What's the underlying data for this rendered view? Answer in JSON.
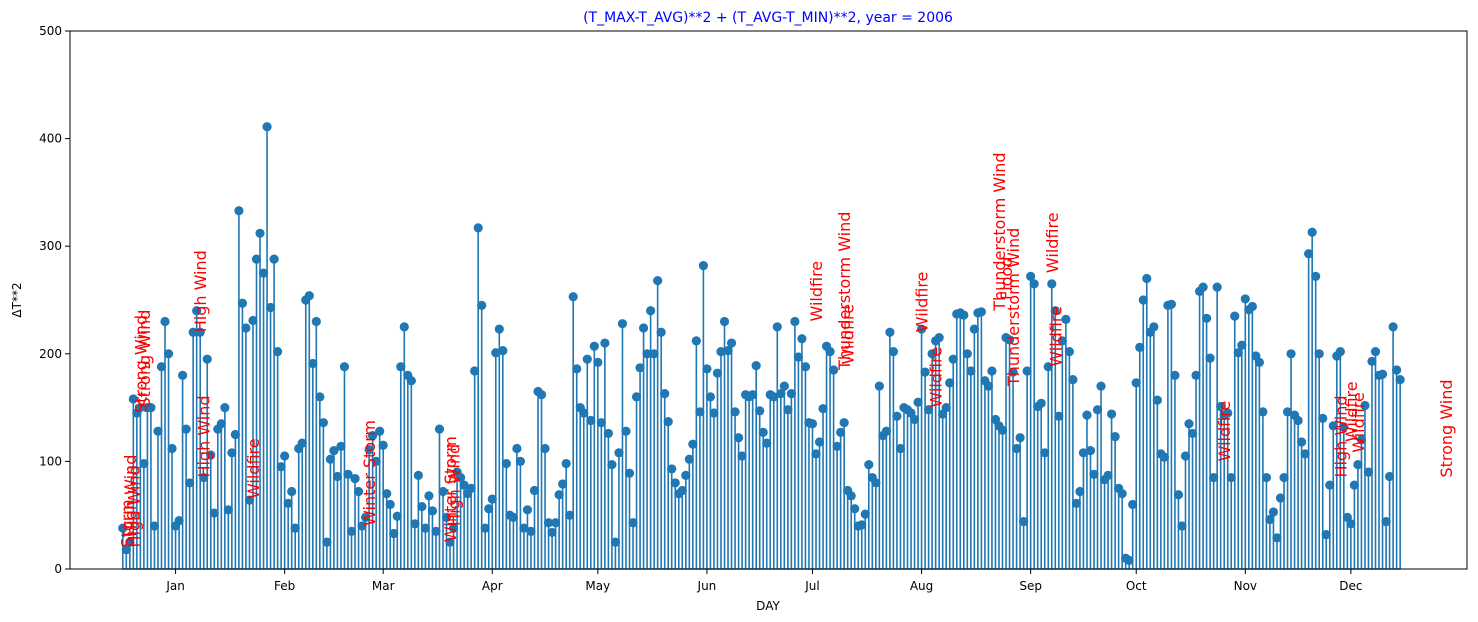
{
  "chart_data": {
    "type": "stem",
    "title": "(T_MAX-T_AVG)**2 + (T_AVG-T_MIN)**2, year = 2006",
    "xlabel": "DAY",
    "ylabel": "ΔT**2",
    "ylim": [
      0,
      500
    ],
    "yticks": [
      0,
      100,
      200,
      300,
      400,
      500
    ],
    "xticks": [
      {
        "label": "Jan",
        "day": 15
      },
      {
        "label": "Feb",
        "day": 46
      },
      {
        "label": "Mar",
        "day": 74
      },
      {
        "label": "Apr",
        "day": 105
      },
      {
        "label": "May",
        "day": 135
      },
      {
        "label": "Jun",
        "day": 166
      },
      {
        "label": "Jul",
        "day": 196
      },
      {
        "label": "Aug",
        "day": 227
      },
      {
        "label": "Sep",
        "day": 258
      },
      {
        "label": "Oct",
        "day": 288
      },
      {
        "label": "Nov",
        "day": 319
      },
      {
        "label": "Dec",
        "day": 349
      }
    ],
    "xlim": [
      -15,
      382
    ],
    "series": [
      {
        "values": [
          38,
          18,
          25,
          158,
          145,
          150,
          98,
          150,
          150,
          40,
          128,
          188,
          230,
          200,
          112,
          40,
          45,
          180,
          130,
          80,
          220,
          240,
          220,
          85,
          195,
          106,
          52,
          130,
          135,
          150,
          55,
          108,
          125,
          333,
          247,
          224,
          64,
          231,
          288,
          312,
          275,
          411,
          243,
          288,
          202,
          95,
          105,
          61,
          72,
          38,
          112,
          117,
          250,
          254,
          191,
          230,
          160,
          136,
          25,
          102,
          110,
          86,
          114,
          188,
          88,
          35,
          84,
          72,
          40,
          48,
          111,
          124,
          100,
          128,
          115,
          70,
          60,
          33,
          49,
          188,
          225,
          180,
          175,
          42,
          87,
          58,
          38,
          68,
          54,
          35,
          130,
          72,
          48,
          25,
          38,
          90,
          85,
          78,
          70,
          75,
          184,
          317,
          245,
          38,
          56,
          65,
          201,
          223,
          203,
          98,
          50,
          48,
          112,
          100,
          38,
          55,
          35,
          73,
          165,
          162,
          112,
          43,
          34,
          43,
          69,
          79,
          98,
          50,
          253,
          186,
          150,
          145,
          195,
          138,
          207,
          192,
          136,
          210,
          126,
          97,
          25,
          108,
          228,
          128,
          89,
          43,
          160,
          187,
          224,
          200,
          240,
          200,
          268,
          220,
          163,
          137,
          93,
          80,
          70,
          73,
          87,
          102,
          116,
          212,
          146,
          282,
          186,
          160,
          145,
          182,
          202,
          230,
          203,
          210,
          146,
          122,
          105,
          162,
          160,
          162,
          189,
          147,
          127,
          117,
          162,
          160,
          225,
          163,
          170,
          148,
          163,
          230,
          197,
          214,
          188,
          136,
          135,
          107,
          118,
          149,
          207,
          202,
          185,
          114,
          127,
          136,
          73,
          68,
          56,
          40,
          41,
          51,
          97,
          85,
          80,
          170,
          124,
          128,
          220,
          202,
          142,
          112,
          150,
          148,
          145,
          139,
          155,
          223,
          183,
          148,
          200,
          212,
          215,
          144,
          150,
          173,
          195,
          237,
          238,
          236,
          200,
          184,
          223,
          238,
          239,
          175,
          170,
          184,
          139,
          133,
          129,
          215,
          213,
          183,
          112,
          122,
          44,
          184,
          272,
          265,
          151,
          154,
          108,
          188,
          265,
          240,
          142,
          212,
          232,
          202,
          176,
          61,
          72,
          108,
          143,
          110,
          88,
          148,
          170,
          83,
          87,
          144,
          123,
          75,
          70,
          10,
          8,
          60,
          173,
          206,
          250,
          270,
          220,
          225,
          157,
          107,
          104,
          245,
          246,
          180,
          69,
          40,
          105,
          135,
          126,
          180,
          258,
          262,
          233,
          196,
          85,
          262,
          151,
          143,
          145,
          85,
          235,
          201,
          208,
          251,
          241,
          244,
          198,
          192,
          146,
          85,
          46,
          53,
          29,
          66,
          85,
          146,
          200,
          143,
          138,
          118,
          107,
          293,
          313,
          272,
          200,
          140,
          32,
          78,
          133,
          198,
          202,
          132,
          48,
          42,
          78,
          97,
          120,
          152,
          90,
          193,
          202,
          180,
          181,
          44,
          86,
          225,
          185,
          176
        ]
      }
    ],
    "annotations": [
      {
        "text": "Storm",
        "day": 1,
        "y": 20
      },
      {
        "text": "High Wind",
        "day": 2,
        "y": 30
      },
      {
        "text": "High Wind",
        "day": 3,
        "y": 20
      },
      {
        "text": "Strong Wind",
        "day": 5,
        "y": 145
      },
      {
        "text": "Strong Wind",
        "day": 6,
        "y": 150
      },
      {
        "text": "High Wind",
        "day": 22,
        "y": 220
      },
      {
        "text": "High Wind",
        "day": 23,
        "y": 85
      },
      {
        "text": "Wildfire",
        "day": 37,
        "y": 65
      },
      {
        "text": "Winter Storm",
        "day": 70,
        "y": 40
      },
      {
        "text": "Winter Storm",
        "day": 93,
        "y": 25
      },
      {
        "text": "High Wind",
        "day": 94,
        "y": 40
      },
      {
        "text": "Wildfire",
        "day": 197,
        "y": 230
      },
      {
        "text": "Thunderstorm Wind",
        "day": 205,
        "y": 185
      },
      {
        "text": "Wildfire",
        "day": 206,
        "y": 190
      },
      {
        "text": "Wildfire",
        "day": 227,
        "y": 220
      },
      {
        "text": "Wildfire",
        "day": 231,
        "y": 150
      },
      {
        "text": "Thunderstorm Wind",
        "day": 249,
        "y": 240
      },
      {
        "text": "Flood",
        "day": 251,
        "y": 250
      },
      {
        "text": "Thunderstorm Wind",
        "day": 253,
        "y": 170
      },
      {
        "text": "Wildfire",
        "day": 264,
        "y": 275
      },
      {
        "text": "Wildfire",
        "day": 265,
        "y": 188
      },
      {
        "text": "Wildfire",
        "day": 313,
        "y": 100
      },
      {
        "text": "High Wind",
        "day": 346,
        "y": 85
      },
      {
        "text": "Wildfire",
        "day": 349,
        "y": 118
      },
      {
        "text": "Wildfire",
        "day": 351,
        "y": 108
      },
      {
        "text": "Strong Wind",
        "day": 376,
        "y": 85
      }
    ],
    "colors": {
      "stem": "#1f77b4",
      "annotation": "#ff0000",
      "title": "#0000ff"
    },
    "grid": false
  }
}
